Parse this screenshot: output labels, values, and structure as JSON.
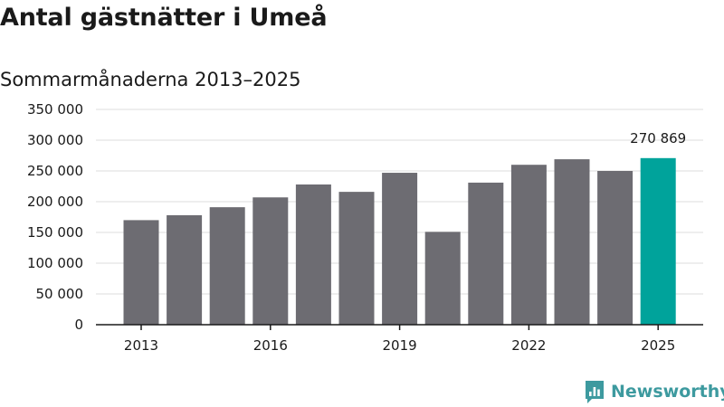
{
  "chart_data": {
    "type": "bar",
    "title": "Antal gästnätter i Umeå",
    "subtitle": "Sommarmånaderna 2013–2025",
    "categories": [
      "2013",
      "2014",
      "2015",
      "2016",
      "2017",
      "2018",
      "2019",
      "2020",
      "2021",
      "2022",
      "2023",
      "2024",
      "2025"
    ],
    "values": [
      170000,
      178000,
      191000,
      207000,
      228000,
      216000,
      247000,
      151000,
      231000,
      260000,
      269000,
      250000,
      270869
    ],
    "x_tick_labels": [
      "2013",
      "2016",
      "2019",
      "2022",
      "2025"
    ],
    "y_tick_labels": [
      "0",
      "50 000",
      "100 000",
      "150 000",
      "200 000",
      "250 000",
      "300 000",
      "350 000"
    ],
    "y_ticks": [
      0,
      50000,
      100000,
      150000,
      200000,
      250000,
      300000,
      350000
    ],
    "ylim": [
      0,
      350000
    ],
    "grid": true,
    "highlight_index": 12,
    "highlight_label": "270 869",
    "colors": {
      "bar": "#6d6c72",
      "highlight": "#00a39b",
      "grid": "#dcdcdc",
      "axis": "#1a1a1a"
    }
  },
  "brand": {
    "name": "Newsworthy",
    "color": "#3d9a9f",
    "icon": "newsworthy-logo-icon"
  }
}
